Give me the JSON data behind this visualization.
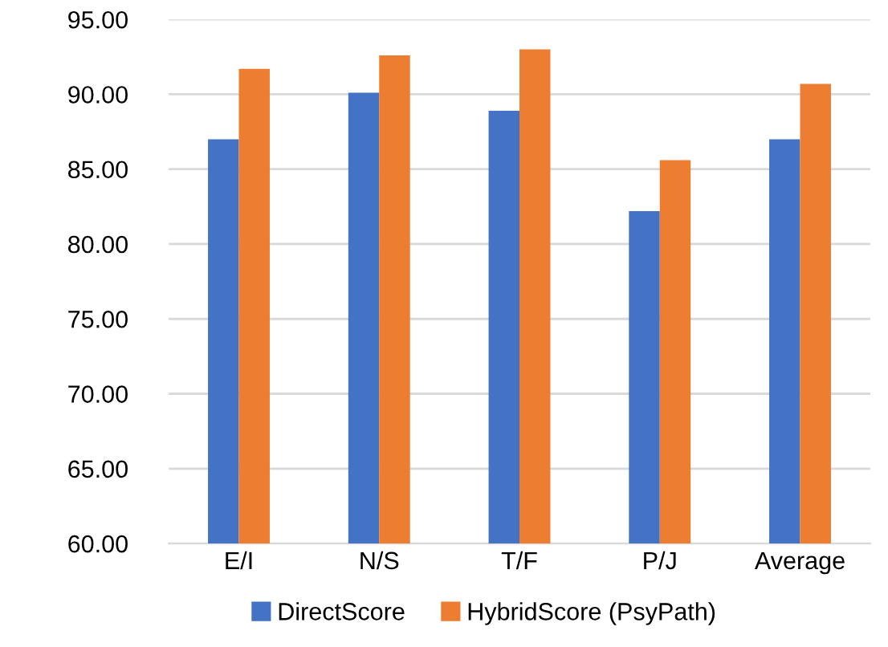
{
  "chart_data": {
    "type": "bar",
    "categories": [
      "E/I",
      "N/S",
      "T/F",
      "P/J",
      "Average"
    ],
    "series": [
      {
        "name": "DirectScore",
        "color": "#4472c4",
        "values": [
          87.0,
          90.1,
          88.9,
          82.2,
          87.0
        ]
      },
      {
        "name": "HybridScore (PsyPath)",
        "color": "#ed7d31",
        "values": [
          91.7,
          92.6,
          93.0,
          85.6,
          90.7
        ]
      }
    ],
    "ylim": [
      60,
      95
    ],
    "yticks": [
      {
        "value": 60,
        "label": "60.00"
      },
      {
        "value": 65,
        "label": "65.00"
      },
      {
        "value": 70,
        "label": "70.00"
      },
      {
        "value": 75,
        "label": "75.00"
      },
      {
        "value": 80,
        "label": "80.00"
      },
      {
        "value": 85,
        "label": "85.00"
      },
      {
        "value": 90,
        "label": "90.00"
      },
      {
        "value": 95,
        "label": "95.00"
      }
    ],
    "grid": "y",
    "legend": "bottom"
  }
}
